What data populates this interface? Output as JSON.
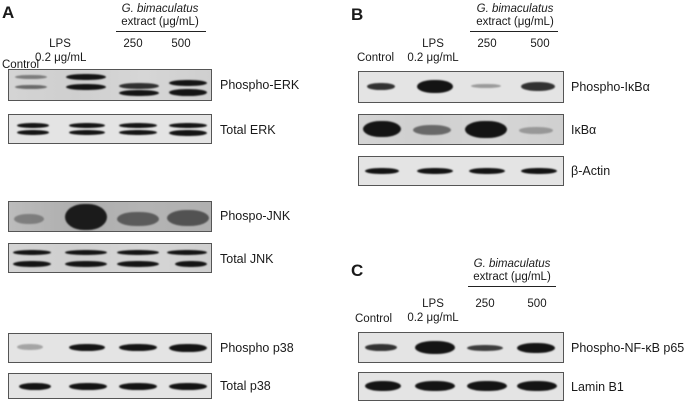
{
  "panelA": {
    "letter": "A",
    "header": {
      "species": "G. bimaculatus",
      "extract": "extract (μg/mL)",
      "control": "Control",
      "lps": "LPS",
      "lps_dose": "0.2 μg/mL",
      "dose1": "250",
      "dose2": "500"
    },
    "rows": [
      "Phospho-ERK",
      "Total ERK",
      "Phospo-JNK",
      "Total JNK",
      "Phospho p38",
      "Total p38"
    ]
  },
  "panelB": {
    "letter": "B",
    "header": {
      "species": "G. bimaculatus",
      "extract": "extract (μg/mL)",
      "control": "Control",
      "lps": "LPS",
      "lps_dose": "0.2 μg/mL",
      "dose1": "250",
      "dose2": "500"
    },
    "rows": [
      "Phospho-IκBα",
      "IκBα",
      "β-Actin"
    ]
  },
  "panelC": {
    "letter": "C",
    "header": {
      "species": "G. bimaculatus",
      "extract": "extract (μg/mL)",
      "control": "Control",
      "lps": "LPS",
      "lps_dose": "0.2 μg/mL",
      "dose1": "250",
      "dose2": "500"
    },
    "rows": [
      "Phospho-NF-κB p65",
      "Lamin B1"
    ]
  }
}
